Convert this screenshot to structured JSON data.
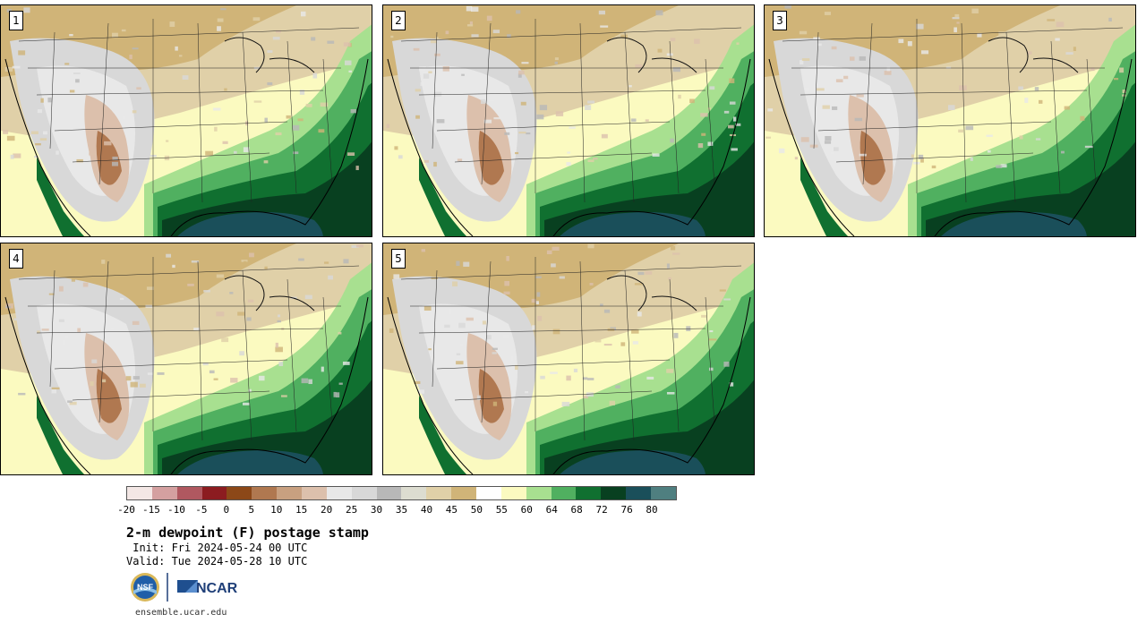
{
  "panels": [
    {
      "label": "1"
    },
    {
      "label": "2"
    },
    {
      "label": "3"
    },
    {
      "label": "4"
    },
    {
      "label": "5"
    }
  ],
  "colorbar": {
    "colors": [
      "#f3e7e5",
      "#d4a0a0",
      "#b05860",
      "#8c1c20",
      "#8c4818",
      "#b07850",
      "#c8a080",
      "#dcc0ac",
      "#e8e8e8",
      "#d8d8d8",
      "#b8b8b8",
      "#dcdcd0",
      "#e0d0a8",
      "#d0b478",
      "#ffffff",
      "#fbfac0",
      "#a8e090",
      "#50b060",
      "#107030",
      "#084020",
      "#1a4f5a",
      "#4f7f80"
    ],
    "ticks": [
      "-20",
      "-15",
      "-10",
      "-5",
      "0",
      "5",
      "10",
      "15",
      "20",
      "25",
      "30",
      "35",
      "40",
      "45",
      "50",
      "55",
      "60",
      "64",
      "68",
      "72",
      "76",
      "80"
    ]
  },
  "title": "2-m dewpoint (F) postage stamp",
  "init": " Init: Fri 2024-05-24 00 UTC",
  "valid": "Valid: Tue 2024-05-28 10 UTC",
  "logos": {
    "nsf": "NSF",
    "ncar": "NCAR"
  },
  "site": "ensemble.ucar.edu"
}
